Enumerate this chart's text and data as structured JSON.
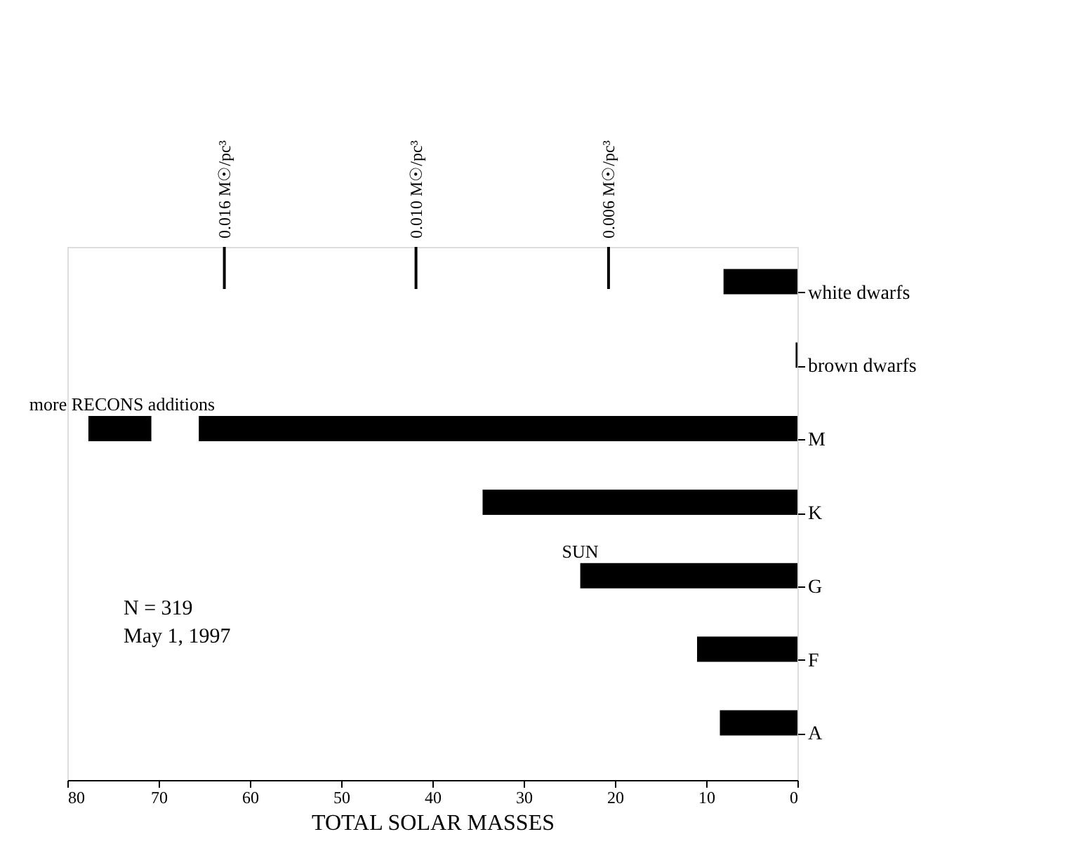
{
  "chart_data": {
    "type": "bar",
    "orientation": "horizontal",
    "xlabel": "TOTAL SOLAR MASSES",
    "categories": [
      "white dwarfs",
      "brown dwarfs",
      "M",
      "K",
      "G",
      "F",
      "A"
    ],
    "series": [
      {
        "color": "#000000",
        "values": [
          8.1,
          0.2,
          65.6,
          34.5,
          23.8,
          11.0,
          8.5
        ]
      },
      {
        "color": "#000000",
        "base": [
          null,
          null,
          70.8,
          null,
          null,
          null,
          null
        ],
        "values": [
          null,
          null,
          6.9,
          null,
          null,
          null,
          null
        ]
      }
    ],
    "xlim": [
      80,
      0
    ],
    "xticks": [
      0,
      10,
      20,
      30,
      40,
      50,
      60,
      70,
      80
    ],
    "ref_lines": [
      {
        "axis": "x",
        "value": 62.8,
        "label": "0.016 M☉/pc³"
      },
      {
        "axis": "x",
        "value": 41.8,
        "label": "0.010 M☉/pc³"
      },
      {
        "axis": "x",
        "value": 20.7,
        "label": "0.006 M☉/pc³"
      }
    ],
    "annotations": [
      {
        "text": "SUN",
        "x": 23.8,
        "y": "G"
      },
      {
        "text": "more RECONS additions",
        "x": 74,
        "y": "M"
      },
      "N = 319",
      "May 1, 1997"
    ],
    "grid": false
  }
}
